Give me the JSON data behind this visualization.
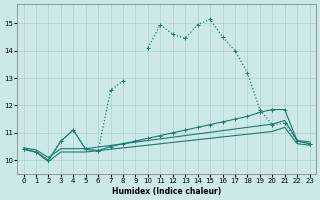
{
  "xlabel": "Humidex (Indice chaleur)",
  "bg_color": "#cce8e8",
  "grid_color": "#aad0d0",
  "line_color": "#1a7a6e",
  "xlim": [
    -0.5,
    23.5
  ],
  "ylim": [
    9.5,
    15.7
  ],
  "yticks": [
    10,
    11,
    12,
    13,
    14,
    15
  ],
  "xticks": [
    0,
    1,
    2,
    3,
    4,
    5,
    6,
    7,
    8,
    9,
    10,
    11,
    12,
    13,
    14,
    15,
    16,
    17,
    18,
    19,
    20,
    21,
    22,
    23
  ],
  "series": [
    {
      "x": [
        0,
        1,
        2,
        3,
        4,
        5,
        6,
        7,
        8,
        9,
        10,
        11,
        12,
        13,
        14,
        15,
        16,
        17,
        18,
        19,
        20,
        21,
        22,
        23
      ],
      "y": [
        10.4,
        10.3,
        10.0,
        10.7,
        11.1,
        10.4,
        10.35,
        12.55,
        12.9,
        null,
        14.1,
        14.95,
        14.6,
        14.45,
        14.95,
        15.15,
        14.5,
        14.0,
        13.2,
        11.85,
        11.3,
        11.35,
        10.7,
        10.6
      ],
      "linestyle": "dotted",
      "linewidth": 0.9,
      "marker": true,
      "markersize": 2.5
    },
    {
      "x": [
        0,
        1,
        2,
        3,
        4,
        5,
        6,
        7,
        8,
        9,
        10,
        11,
        12,
        13,
        14,
        15,
        16,
        17,
        18,
        19,
        20,
        21,
        22,
        23
      ],
      "y": [
        10.4,
        10.3,
        9.95,
        10.3,
        10.3,
        10.3,
        10.35,
        10.4,
        10.45,
        10.5,
        10.55,
        10.6,
        10.65,
        10.7,
        10.75,
        10.8,
        10.85,
        10.9,
        10.95,
        11.0,
        11.05,
        11.2,
        10.6,
        10.55
      ],
      "linestyle": "solid",
      "linewidth": 0.8,
      "marker": false,
      "markersize": 0
    },
    {
      "x": [
        0,
        1,
        2,
        3,
        4,
        5,
        6,
        7,
        8,
        9,
        10,
        11,
        12,
        13,
        14,
        15,
        16,
        17,
        18,
        19,
        20,
        21,
        22,
        23
      ],
      "y": [
        10.45,
        10.38,
        10.1,
        10.42,
        10.42,
        10.42,
        10.48,
        10.54,
        10.6,
        10.66,
        10.72,
        10.78,
        10.84,
        10.9,
        10.96,
        11.02,
        11.08,
        11.14,
        11.2,
        11.26,
        11.32,
        11.45,
        10.72,
        10.67
      ],
      "linestyle": "solid",
      "linewidth": 0.8,
      "marker": false,
      "markersize": 0
    },
    {
      "x": [
        0,
        1,
        2,
        3,
        4,
        5,
        6,
        7,
        8,
        9,
        10,
        11,
        12,
        13,
        14,
        15,
        16,
        17,
        18,
        19,
        20,
        21,
        22,
        23
      ],
      "y": [
        10.4,
        10.3,
        10.0,
        10.7,
        11.1,
        10.4,
        10.35,
        10.5,
        10.6,
        10.7,
        10.8,
        10.9,
        11.0,
        11.1,
        11.2,
        11.3,
        11.4,
        11.5,
        11.6,
        11.75,
        11.85,
        11.85,
        10.7,
        10.6
      ],
      "linestyle": "solid",
      "linewidth": 0.8,
      "marker": true,
      "markersize": 2.5
    }
  ]
}
